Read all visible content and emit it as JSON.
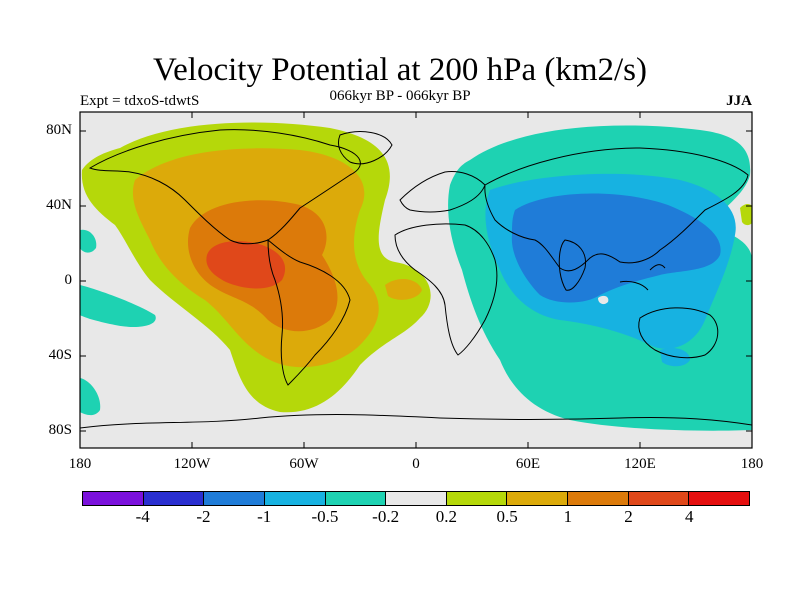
{
  "title": "Velocity Potential at 200 hPa (km2/s)",
  "left_label": "Expt = tdxoS-tdwtS",
  "center_label": "066kyr BP - 066kyr BP",
  "right_label": "JJA",
  "y_ticks": [
    "80N",
    "40N",
    "0",
    "40S",
    "80S"
  ],
  "x_ticks": [
    "180",
    "120W",
    "60W",
    "0",
    "60E",
    "120E",
    "180"
  ],
  "colorbar": {
    "colors": [
      "#7b11dc",
      "#2a2fd0",
      "#1f7cd8",
      "#17b2e1",
      "#1ed2b2",
      "#e8e8e8",
      "#b5d80a",
      "#dcaa0a",
      "#dc7a0a",
      "#e0481a",
      "#e50f0f"
    ],
    "labels": [
      "-4",
      "-2",
      "-1",
      "-0.5",
      "-0.2",
      "0.2",
      "0.5",
      "1",
      "2",
      "4"
    ]
  },
  "map": {
    "projection": "cylindrical equidistant",
    "lon_range": [
      -180,
      180
    ],
    "lat_range": [
      -90,
      90
    ],
    "background_color": "#e8e8e8"
  }
}
